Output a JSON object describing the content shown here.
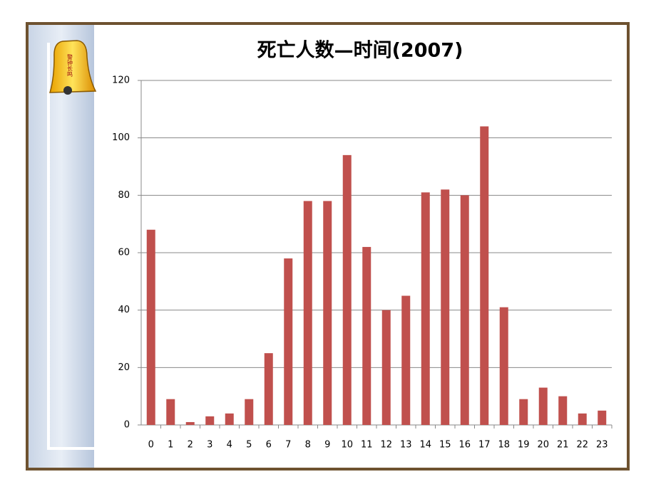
{
  "badge": "警钟长鸣",
  "chart_data": {
    "type": "bar",
    "title": "死亡人数—时间(2007)",
    "categories": [
      "0",
      "1",
      "2",
      "3",
      "4",
      "5",
      "6",
      "7",
      "8",
      "9",
      "10",
      "11",
      "12",
      "13",
      "14",
      "15",
      "16",
      "17",
      "18",
      "19",
      "20",
      "21",
      "22",
      "23"
    ],
    "values": [
      68,
      9,
      1,
      3,
      4,
      9,
      25,
      58,
      78,
      78,
      94,
      62,
      40,
      45,
      81,
      82,
      80,
      104,
      41,
      9,
      13,
      10,
      4,
      5
    ],
    "color": "#c0504d",
    "ylim": [
      0,
      120
    ],
    "yticks": [
      0,
      20,
      40,
      60,
      80,
      100,
      120
    ],
    "grid": true
  }
}
